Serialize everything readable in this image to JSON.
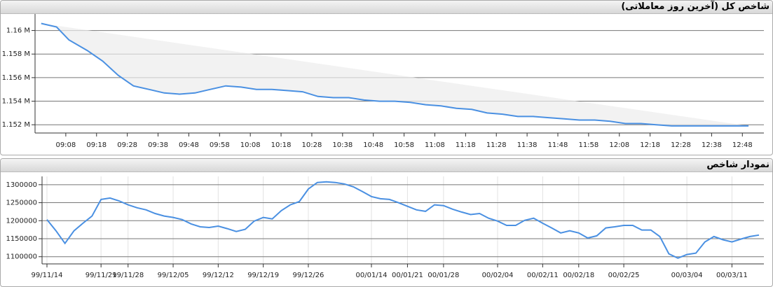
{
  "chart_data": [
    {
      "type": "line",
      "title": "شاخص کل (آخرین روز معاملاتی)",
      "x": [
        "09:00",
        "09:05",
        "09:09",
        "09:15",
        "09:20",
        "09:25",
        "09:30",
        "09:35",
        "09:40",
        "09:45",
        "09:50",
        "09:55",
        "10:00",
        "10:05",
        "10:10",
        "10:15",
        "10:20",
        "10:25",
        "10:30",
        "10:35",
        "10:40",
        "10:45",
        "10:50",
        "10:55",
        "11:00",
        "11:05",
        "11:10",
        "11:15",
        "11:20",
        "11:25",
        "11:30",
        "11:35",
        "11:40",
        "11:45",
        "11:50",
        "11:55",
        "12:00",
        "12:05",
        "12:10",
        "12:15",
        "12:20",
        "12:25",
        "12:30",
        "12:35",
        "12:40",
        "12:45",
        "12:50"
      ],
      "series": [
        {
          "color": "#4a90e2",
          "values": [
            1160600,
            1160300,
            1159200,
            1158300,
            1157400,
            1156200,
            1155300,
            1155000,
            1154700,
            1154600,
            1154700,
            1155000,
            1155300,
            1155200,
            1155000,
            1155000,
            1154900,
            1154800,
            1154400,
            1154300,
            1154300,
            1154100,
            1154000,
            1154000,
            1153900,
            1153700,
            1153600,
            1153400,
            1153300,
            1153000,
            1152900,
            1152700,
            1152700,
            1152600,
            1152500,
            1152400,
            1152400,
            1152300,
            1152100,
            1152100,
            1152000,
            1151900,
            1151900,
            1151900,
            1151900,
            1151900,
            1151900
          ]
        }
      ],
      "xlim": [
        "08:58",
        "12:55"
      ],
      "xticks": [
        "09:08",
        "09:18",
        "09:28",
        "09:38",
        "09:48",
        "09:58",
        "10:08",
        "10:18",
        "10:28",
        "10:38",
        "10:48",
        "10:58",
        "11:08",
        "11:18",
        "11:28",
        "11:38",
        "11:48",
        "11:58",
        "12:08",
        "12:18",
        "12:28",
        "12:38",
        "12:48"
      ],
      "ylim": [
        1151300,
        1161400
      ],
      "yticks": [
        {
          "value": 1152000,
          "label": "1.152 M"
        },
        {
          "value": 1154000,
          "label": "1.154 M"
        },
        {
          "value": 1156000,
          "label": "1.156 M"
        },
        {
          "value": 1158000,
          "label": "1.158 M"
        },
        {
          "value": 1160000,
          "label": "1.16 M"
        }
      ],
      "grid": true
    },
    {
      "type": "line",
      "title": "نمودار شاخص",
      "categories": [
        "99/11/14",
        null,
        null,
        null,
        null,
        null,
        "99/11/21",
        null,
        null,
        "99/11/28",
        null,
        null,
        null,
        null,
        "99/12/05",
        null,
        null,
        null,
        null,
        "99/12/12",
        null,
        null,
        null,
        null,
        "99/12/19",
        null,
        null,
        null,
        null,
        "99/12/26",
        null,
        null,
        null,
        null,
        null,
        null,
        "00/01/14",
        null,
        null,
        null,
        "00/01/21",
        null,
        null,
        null,
        "00/01/28",
        null,
        null,
        null,
        null,
        null,
        "00/02/04",
        null,
        null,
        null,
        null,
        "00/02/11",
        null,
        null,
        null,
        "00/02/18",
        null,
        null,
        null,
        null,
        "00/02/25",
        null,
        null,
        null,
        null,
        null,
        null,
        "00/03/04",
        null,
        null,
        null,
        null,
        "00/03/11",
        null,
        null,
        null
      ],
      "series": [
        {
          "color": "#4a90e2",
          "values": [
            1203000,
            1172000,
            1137000,
            1172000,
            1193000,
            1213000,
            1259000,
            1263000,
            1255000,
            1244000,
            1236000,
            1230000,
            1220000,
            1213000,
            1209000,
            1203000,
            1191000,
            1183000,
            1181000,
            1185000,
            1178000,
            1170000,
            1176000,
            1199000,
            1209000,
            1205000,
            1228000,
            1244000,
            1253000,
            1288000,
            1306000,
            1308000,
            1306000,
            1302000,
            1294000,
            1281000,
            1267000,
            1261000,
            1259000,
            1250000,
            1240000,
            1230000,
            1226000,
            1244000,
            1242000,
            1232000,
            1224000,
            1217000,
            1220000,
            1207000,
            1199000,
            1187000,
            1187000,
            1201000,
            1207000,
            1193000,
            1180000,
            1166000,
            1172000,
            1166000,
            1152000,
            1158000,
            1180000,
            1183000,
            1187000,
            1187000,
            1174000,
            1174000,
            1156000,
            1108000,
            1096000,
            1106000,
            1110000,
            1141000,
            1156000,
            1147000,
            1141000,
            1149000,
            1156000,
            1160000
          ]
        }
      ],
      "ylim": [
        1080000,
        1323000
      ],
      "yticks": [
        1100000,
        1150000,
        1200000,
        1250000,
        1300000
      ],
      "grid": true
    }
  ]
}
